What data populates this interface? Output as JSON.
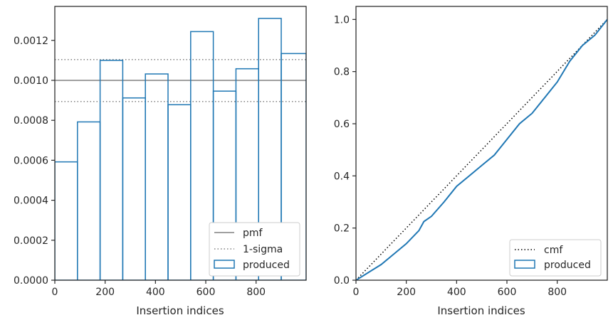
{
  "chart_data": [
    {
      "type": "histogram-step",
      "xlabel": "Insertion indices",
      "ylabel": "",
      "xlim": [
        0,
        999
      ],
      "ylim": [
        0,
        0.00137
      ],
      "xticks": [
        0,
        200,
        400,
        600,
        800
      ],
      "xtick_labels": [
        "0",
        "200",
        "400",
        "600",
        "800"
      ],
      "yticks": [
        0,
        0.0002,
        0.0004,
        0.0006,
        0.0008,
        0.001,
        0.0012
      ],
      "ytick_labels": [
        "0.0000",
        "0.0002",
        "0.0004",
        "0.0006",
        "0.0008",
        "0.0010",
        "0.0012"
      ],
      "series": [
        {
          "name": "produced",
          "style": "step",
          "color": "#1f77b4",
          "bin_edges": [
            0,
            90,
            180,
            270,
            360,
            450,
            540,
            630,
            720,
            810,
            900,
            999
          ],
          "values": [
            0.000592,
            0.000792,
            0.0011,
            0.000912,
            0.001032,
            0.000878,
            0.001244,
            0.000946,
            0.001058,
            0.00131,
            0.001134
          ]
        },
        {
          "name": "pmf",
          "style": "hline",
          "color": "#808080",
          "value": 0.001
        },
        {
          "name": "1-sigma",
          "style": "hline-dotted",
          "color": "#808080",
          "values": [
            0.001104,
            0.000894
          ]
        }
      ],
      "legend": {
        "position": "lower-right",
        "entries": [
          "pmf",
          "1-sigma",
          "produced"
        ]
      }
    },
    {
      "type": "line",
      "xlabel": "Insertion indices",
      "ylabel": "",
      "xlim": [
        0,
        999
      ],
      "ylim": [
        0,
        1.05
      ],
      "xticks": [
        0,
        200,
        400,
        600,
        800
      ],
      "xtick_labels": [
        "0",
        "200",
        "400",
        "600",
        "800"
      ],
      "yticks": [
        0,
        0.2,
        0.4,
        0.6,
        0.8,
        1.0
      ],
      "ytick_labels": [
        "0.0",
        "0.2",
        "0.4",
        "0.6",
        "0.8",
        "1.0"
      ],
      "series": [
        {
          "name": "cmf",
          "style": "dotted",
          "color": "#000000",
          "x": [
            0,
            999
          ],
          "y": [
            0,
            1.0
          ]
        },
        {
          "name": "produced",
          "style": "step",
          "color": "#1f77b4",
          "x": [
            0,
            50,
            100,
            150,
            200,
            250,
            270,
            300,
            350,
            400,
            450,
            500,
            550,
            600,
            650,
            700,
            750,
            800,
            850,
            900,
            950,
            999
          ],
          "y": [
            0,
            0.03,
            0.06,
            0.1,
            0.14,
            0.19,
            0.225,
            0.245,
            0.3,
            0.36,
            0.4,
            0.44,
            0.48,
            0.54,
            0.6,
            0.64,
            0.7,
            0.76,
            0.84,
            0.9,
            0.94,
            1.0
          ]
        }
      ],
      "legend": {
        "position": "lower-right",
        "entries": [
          "cmf",
          "produced"
        ]
      }
    }
  ]
}
